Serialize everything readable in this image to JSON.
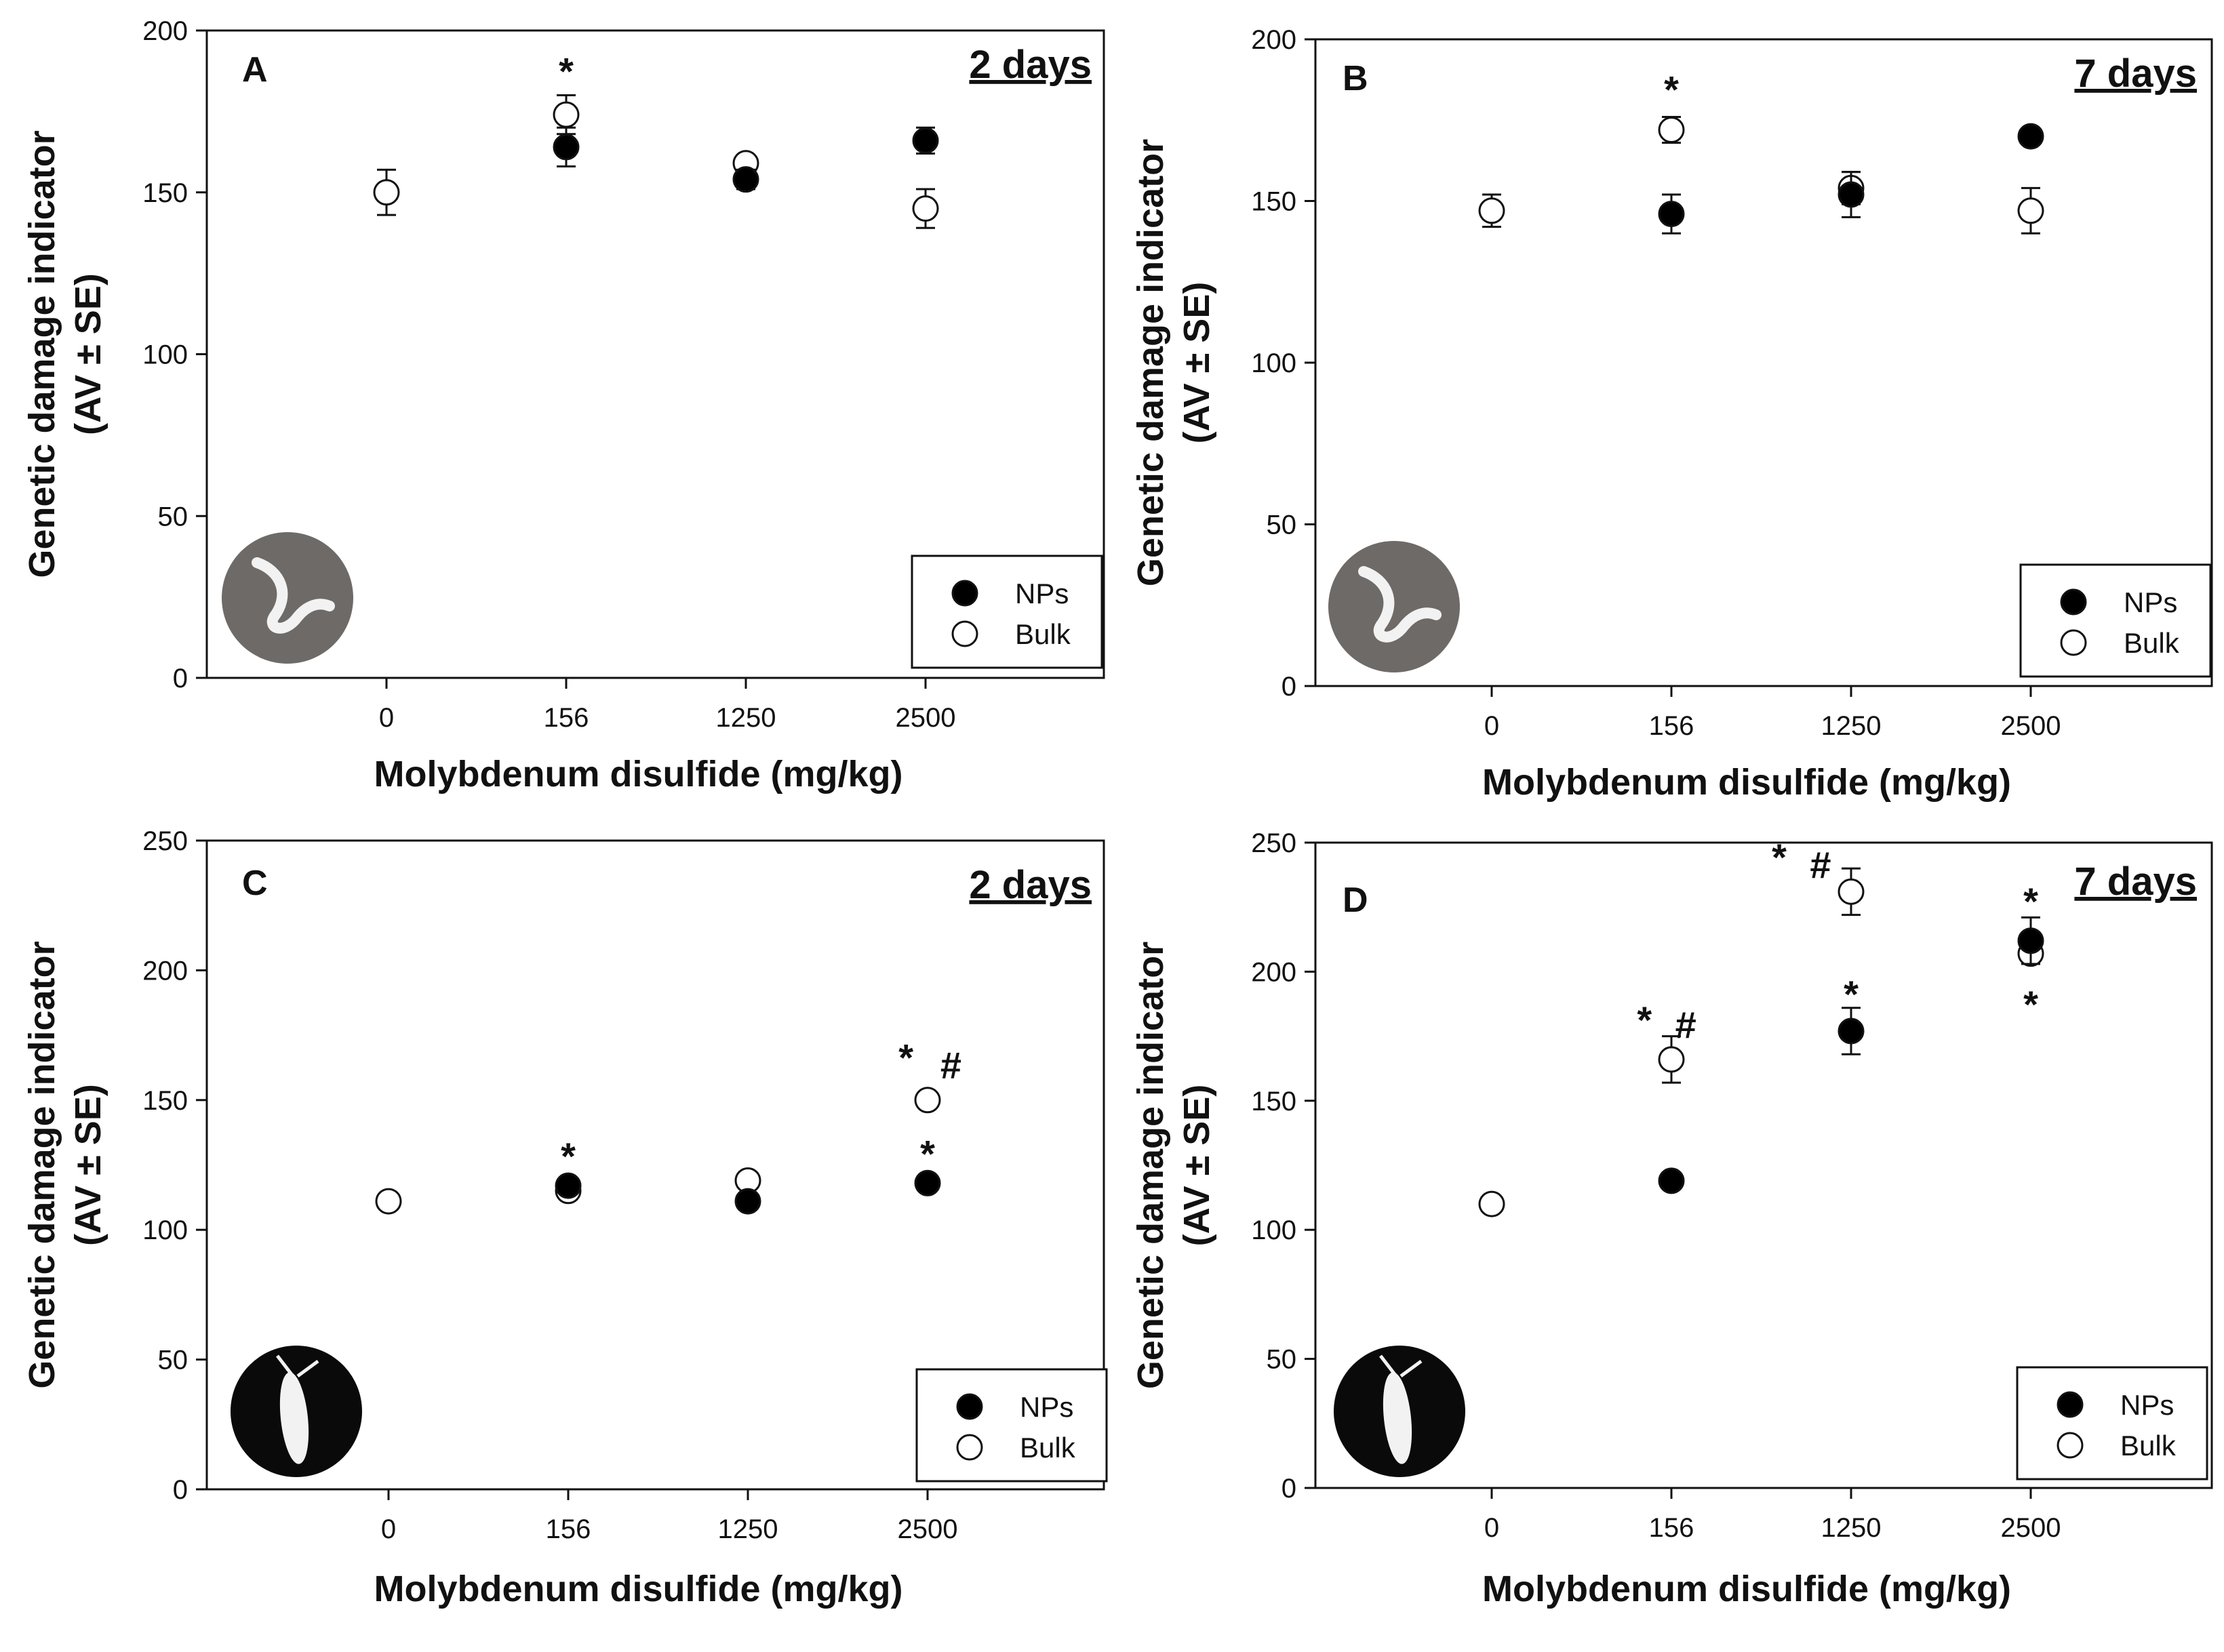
{
  "colors": {
    "axis": "#111111",
    "filled": "#000000",
    "open": "#ffffff",
    "icon_bg": "#6e6a67",
    "icon_dark": "#0a0a0a",
    "icon_fg": "#f2f2f2"
  },
  "chart_data": [
    {
      "type": "scatter",
      "panel": "A",
      "period": "2 days",
      "organism_icon": "worm-icon",
      "xlabel": "Molybdenum  disulfide  (mg/kg)",
      "ylabel": [
        "Genetic damage indicator",
        "(AV ± SE)"
      ],
      "categories": [
        "0",
        "156",
        "1250",
        "2500"
      ],
      "ylim": [
        0,
        200
      ],
      "yticks": [
        0,
        50,
        100,
        150,
        200
      ],
      "legend": [
        "NPs",
        "Bulk"
      ],
      "legend_position": "bottom-right",
      "series": [
        {
          "name": "NPs",
          "style": "filled",
          "values": [
            null,
            164,
            154,
            166
          ],
          "err": [
            null,
            6,
            3,
            4
          ]
        },
        {
          "name": "Bulk",
          "style": "open",
          "values": [
            150,
            174,
            159,
            145
          ],
          "err": [
            7,
            6,
            2,
            6
          ]
        }
      ],
      "annotations": [
        {
          "category": "156",
          "text": "*",
          "value": 188
        }
      ]
    },
    {
      "type": "scatter",
      "panel": "B",
      "period": "7 days",
      "organism_icon": "worm-icon",
      "xlabel": "Molybdenum  disulfide  (mg/kg)",
      "ylabel": [
        "Genetic damage indicator",
        "(AV ± SE)"
      ],
      "categories": [
        "0",
        "156",
        "1250",
        "2500"
      ],
      "ylim": [
        0,
        200
      ],
      "yticks": [
        0,
        50,
        100,
        150,
        200
      ],
      "legend": [
        "NPs",
        "Bulk"
      ],
      "legend_position": "bottom-right",
      "series": [
        {
          "name": "NPs",
          "style": "filled",
          "values": [
            null,
            146,
            152,
            170
          ],
          "err": [
            null,
            6,
            7,
            2
          ]
        },
        {
          "name": "Bulk",
          "style": "open",
          "values": [
            147,
            172,
            154,
            147
          ],
          "err": [
            5,
            4,
            5,
            7
          ]
        }
      ],
      "annotations": [
        {
          "category": "156",
          "text": "*",
          "value": 185
        }
      ]
    },
    {
      "type": "scatter",
      "panel": "C",
      "period": "2 days",
      "organism_icon": "springtail-icon",
      "xlabel": "Molybdenum  disulfide  (mg/kg)",
      "ylabel": [
        "Genetic damage indicator",
        "(AV ± SE)"
      ],
      "categories": [
        "0",
        "156",
        "1250",
        "2500"
      ],
      "ylim": [
        0,
        250
      ],
      "yticks": [
        0,
        50,
        100,
        150,
        200,
        250
      ],
      "legend": [
        "NPs",
        "Bulk"
      ],
      "legend_position": "bottom-right",
      "series": [
        {
          "name": "NPs",
          "style": "filled",
          "values": [
            null,
            117,
            111,
            118
          ],
          "err": [
            null,
            2,
            2,
            2
          ]
        },
        {
          "name": "Bulk",
          "style": "open",
          "values": [
            111,
            115,
            119,
            150
          ],
          "err": [
            2,
            2,
            2,
            2
          ]
        }
      ],
      "annotations": [
        {
          "category": "156",
          "text": "*",
          "value": 129
        },
        {
          "category": "2500",
          "text": "*",
          "value": 130
        },
        {
          "category": "2500",
          "text": "*",
          "value": 167,
          "offset": -0.12
        },
        {
          "category": "2500",
          "text": "#",
          "value": 164,
          "offset": 0.13
        }
      ]
    },
    {
      "type": "scatter",
      "panel": "D",
      "period": "7 days",
      "organism_icon": "springtail-icon",
      "xlabel": "Molybdenum  disulfide  (mg/kg)",
      "ylabel": [
        "Genetic damage indicator",
        "(AV ± SE)"
      ],
      "categories": [
        "0",
        "156",
        "1250",
        "2500"
      ],
      "ylim": [
        0,
        250
      ],
      "yticks": [
        0,
        50,
        100,
        150,
        200,
        250
      ],
      "legend": [
        "NPs",
        "Bulk"
      ],
      "legend_position": "bottom-right",
      "series": [
        {
          "name": "NPs",
          "style": "filled",
          "values": [
            null,
            119,
            177,
            212
          ],
          "err": [
            null,
            2,
            9,
            9
          ]
        },
        {
          "name": "Bulk",
          "style": "open",
          "values": [
            110,
            166,
            231,
            207
          ],
          "err": [
            2,
            9,
            9,
            2
          ]
        }
      ],
      "annotations": [
        {
          "category": "156",
          "text": "*",
          "value": 182,
          "offset": -0.15
        },
        {
          "category": "156",
          "text": "#",
          "value": 180,
          "offset": 0.08
        },
        {
          "category": "1250",
          "text": "*",
          "value": 245,
          "offset": -0.4
        },
        {
          "category": "1250",
          "text": "#",
          "value": 242,
          "offset": -0.17
        },
        {
          "category": "1250",
          "text": "*",
          "value": 192
        },
        {
          "category": "2500",
          "text": "*",
          "value": 228
        },
        {
          "category": "2500",
          "text": "*",
          "value": 188
        }
      ]
    }
  ]
}
